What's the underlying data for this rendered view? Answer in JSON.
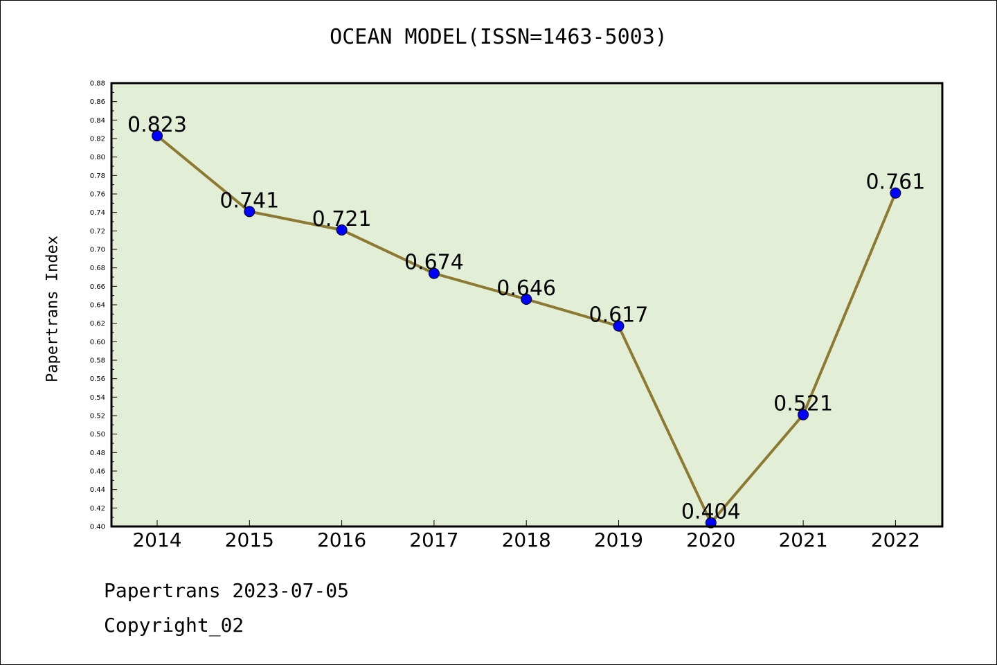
{
  "chart_data": {
    "type": "line",
    "title": "OCEAN MODEL(ISSN=1463-5003)",
    "ylabel": "Papertrans Index",
    "xlabel": "",
    "x": [
      "2014",
      "2015",
      "2016",
      "2017",
      "2018",
      "2019",
      "2020",
      "2021",
      "2022"
    ],
    "series": [
      {
        "values": [
          0.823,
          0.741,
          0.721,
          0.674,
          0.646,
          0.617,
          0.404,
          0.521,
          0.761
        ]
      }
    ],
    "data_labels": [
      "0.823",
      "0.741",
      "0.721",
      "0.674",
      "0.646",
      "0.617",
      "0.404",
      "0.521",
      "0.761"
    ],
    "ylim": [
      0.4,
      0.88
    ],
    "yticks": [
      "0.40",
      "0.42",
      "0.44",
      "0.46",
      "0.48",
      "0.50",
      "0.52",
      "0.54",
      "0.56",
      "0.58",
      "0.60",
      "0.62",
      "0.64",
      "0.66",
      "0.68",
      "0.70",
      "0.72",
      "0.74",
      "0.76",
      "0.78",
      "0.80",
      "0.82",
      "0.84",
      "0.86",
      "0.88"
    ],
    "grid": false,
    "legend": "none",
    "colors": {
      "plot_background": "#e2efd6",
      "line": "#8c7a32",
      "marker": "#0000ff",
      "frame": "#000000"
    }
  },
  "footer": {
    "line1": "Papertrans 2023-07-05",
    "line2": "Copyright_02"
  }
}
